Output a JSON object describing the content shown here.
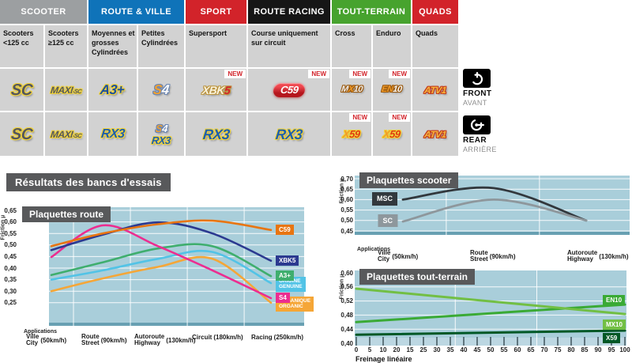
{
  "page": {
    "background": "#ffffff",
    "chart_background": "#a9ceda",
    "title_box_color": "#58595b"
  },
  "section_title": "Résultats des bancs d'essais",
  "side_legend": {
    "front": {
      "label": "FRONT",
      "sub": "AVANT",
      "icon": "front-brake-disc-icon"
    },
    "rear": {
      "label": "REAR",
      "sub": "ARRIÈRE",
      "icon": "rear-brake-disc-icon"
    }
  },
  "product_table": {
    "new_badge": "NEW",
    "headers": [
      {
        "label": "SCOOTER",
        "color": "#9c9fa1",
        "span": 2
      },
      {
        "label": "ROUTE & VILLE",
        "color": "#0f73b9",
        "span": 2
      },
      {
        "label": "SPORT",
        "color": "#d2232a",
        "span": 1
      },
      {
        "label": "ROUTE RACING",
        "color": "#161616",
        "span": 1
      },
      {
        "label": "TOUT-TERRAIN",
        "color": "#47a32e",
        "span": 2
      },
      {
        "label": "QUADS",
        "color": "#d2232a",
        "span": 1
      }
    ],
    "subheaders": [
      "Scooters <125 cc",
      "Scooters ≥125 cc",
      "Moyennes et grosses Cylindrées",
      "Petites Cylindrées",
      "Supersport",
      "Course uniquement sur circuit",
      "Cross",
      "Enduro",
      "Quads"
    ],
    "rows": {
      "front": [
        {
          "name": "SC",
          "new": false,
          "logos": [
            {
              "size": 20,
              "outline": "#f0d23c",
              "parts": [
                {
                  "t": "SC",
                  "c": "#54575d"
                }
              ]
            }
          ]
        },
        {
          "name": "MAXI-SC",
          "new": false,
          "logos": [
            {
              "size": 12,
              "outline": "#f0d23c",
              "parts": [
                {
                  "t": "MAXI",
                  "c": "#54575d"
                },
                {
                  "t": "-SC",
                  "c": "#54575d",
                  "small": true
                }
              ]
            }
          ]
        },
        {
          "name": "A3+",
          "new": false,
          "logos": [
            {
              "size": 17,
              "outline": "#f0d23c",
              "parts": [
                {
                  "t": "A3+",
                  "c": "#1b4f9e"
                }
              ]
            }
          ]
        },
        {
          "name": "S4",
          "new": false,
          "logos": [
            {
              "size": 17,
              "outline": "#6b87b4",
              "parts": [
                {
                  "t": "S",
                  "c": "#f0a030"
                },
                {
                  "t": "4",
                  "c": "#fbfbfb"
                }
              ]
            }
          ]
        },
        {
          "name": "XBK5",
          "new": true,
          "logos": [
            {
              "size": 14,
              "outline": "#bb9440",
              "parts": [
                {
                  "t": "XBK",
                  "c": "#faf3dc"
                },
                {
                  "t": "5",
                  "c": "#d2232a"
                }
              ]
            }
          ]
        },
        {
          "name": "C59",
          "new": true,
          "logos": [
            {
              "size": 13,
              "pill": true,
              "parts": [
                {
                  "t": "C59",
                  "c": "#ffffff"
                }
              ]
            }
          ]
        },
        {
          "name": "MX10",
          "new": true,
          "logos": [
            {
              "size": 11,
              "outline": "#9a5a10",
              "parts": [
                {
                  "t": "M",
                  "c": "#ececec"
                },
                {
                  "t": "X",
                  "c": "#f09a28"
                },
                {
                  "t": "10",
                  "c": "#ececec"
                }
              ]
            }
          ]
        },
        {
          "name": "EN10",
          "new": true,
          "logos": [
            {
              "size": 11,
              "outline": "#9a5a10",
              "parts": [
                {
                  "t": "EN",
                  "c": "#f09a28"
                },
                {
                  "t": "10",
                  "c": "#f7f7f7"
                }
              ]
            }
          ]
        },
        {
          "name": "ATV1",
          "new": false,
          "logos": [
            {
              "size": 12,
              "outline": "#c23b1e",
              "parts": [
                {
                  "t": "ATV1",
                  "c": "#f5b53d"
                }
              ]
            }
          ]
        }
      ],
      "rear": [
        {
          "name": "SC",
          "new": false,
          "logos": [
            {
              "size": 20,
              "outline": "#f0d23c",
              "parts": [
                {
                  "t": "SC",
                  "c": "#54575d"
                }
              ]
            }
          ]
        },
        {
          "name": "MAXI-SC",
          "new": false,
          "logos": [
            {
              "size": 12,
              "outline": "#f0d23c",
              "parts": [
                {
                  "t": "MAXI",
                  "c": "#54575d"
                },
                {
                  "t": "-SC",
                  "c": "#54575d",
                  "small": true
                }
              ]
            }
          ]
        },
        {
          "name": "RX3",
          "new": false,
          "logos": [
            {
              "size": 16,
              "outline": "#f0d23c",
              "parts": [
                {
                  "t": "RX3",
                  "c": "#1d5fad"
                }
              ]
            }
          ]
        },
        {
          "name": "S4 / RX3",
          "new": false,
          "logos": [
            {
              "size": 13,
              "outline": "#6b87b4",
              "parts": [
                {
                  "t": "S",
                  "c": "#f0a030"
                },
                {
                  "t": "4",
                  "c": "#fbfbfb"
                }
              ]
            },
            {
              "size": 13,
              "outline": "#f0d23c",
              "parts": [
                {
                  "t": "RX3",
                  "c": "#1d5fad"
                }
              ]
            }
          ]
        },
        {
          "name": "RX3",
          "new": false,
          "logos": [
            {
              "size": 18,
              "outline": "#f0d23c",
              "parts": [
                {
                  "t": "RX3",
                  "c": "#1d5fad"
                }
              ]
            }
          ]
        },
        {
          "name": "RX3",
          "new": false,
          "logos": [
            {
              "size": 18,
              "outline": "#f0d23c",
              "parts": [
                {
                  "t": "RX3",
                  "c": "#1d5fad"
                }
              ]
            }
          ]
        },
        {
          "name": "X59",
          "new": true,
          "logos": [
            {
              "size": 13,
              "outline": "#f0d23c",
              "parts": [
                {
                  "t": "X",
                  "c": "#f09a28"
                },
                {
                  "t": "59",
                  "c": "#e03c10"
                }
              ]
            }
          ]
        },
        {
          "name": "X59",
          "new": true,
          "logos": [
            {
              "size": 13,
              "outline": "#f0d23c",
              "parts": [
                {
                  "t": "X",
                  "c": "#f09a28"
                },
                {
                  "t": "59",
                  "c": "#e03c10"
                }
              ]
            }
          ]
        },
        {
          "name": "ATV1",
          "new": false,
          "logos": [
            {
              "size": 12,
              "outline": "#c23b1e",
              "parts": [
                {
                  "t": "ATV1",
                  "c": "#f5b53d"
                }
              ]
            }
          ]
        }
      ]
    }
  },
  "chart_data": [
    {
      "type": "line",
      "title": "Plaquettes route",
      "ylabel": "Friction μ",
      "xlabel": "Applications",
      "ylim": [
        0.25,
        0.65
      ],
      "yticks": [
        0.65,
        0.6,
        0.55,
        0.5,
        0.45,
        0.4,
        0.35,
        0.3,
        0.25
      ],
      "ytick_labels": [
        "0,65",
        "0,60",
        "0,55",
        "0,50",
        "0,45",
        "0,40",
        "0,35",
        "0,30",
        "0,25"
      ],
      "grid": true,
      "legend_position": "right-of-line-end",
      "categories": [
        {
          "fr": "Ville",
          "en": "City",
          "speed": "(50km/h)"
        },
        {
          "fr": "Route",
          "en": "Street",
          "speed": "(90km/h)"
        },
        {
          "fr": "Autoroute",
          "en": "Highway",
          "speed": "(130km/h)"
        },
        {
          "fr": "Circuit",
          "speed": "(180km/h)"
        },
        {
          "fr": "Racing",
          "speed": "(250km/h)"
        }
      ],
      "series": [
        {
          "name": "ORGANIQUE / ORGANIC",
          "label_lines": [
            "ORGANIQUE",
            "ORGANIC"
          ],
          "color": "#f5a637",
          "values": [
            0.3,
            0.355,
            0.405,
            0.44,
            0.25
          ]
        },
        {
          "name": "ORIGINE / GENUINE",
          "label_lines": [
            "ORIGINE",
            "GENUINE"
          ],
          "color": "#52c3e6",
          "values": [
            0.35,
            0.39,
            0.44,
            0.47,
            0.335
          ]
        },
        {
          "name": "A3+",
          "color": "#3fae6e",
          "values": [
            0.37,
            0.425,
            0.485,
            0.495,
            0.365
          ]
        },
        {
          "name": "S4",
          "color": "#ec2d90",
          "values": [
            0.448,
            0.585,
            0.495,
            0.39,
            0.27
          ]
        },
        {
          "name": "XBK5",
          "color": "#2b3990",
          "values": [
            0.478,
            0.545,
            0.598,
            0.55,
            0.432
          ]
        },
        {
          "name": "C59",
          "color": "#e87511",
          "values": [
            0.495,
            0.55,
            0.59,
            0.605,
            0.565
          ]
        }
      ]
    },
    {
      "type": "line",
      "title": "Plaquettes scooter",
      "ylabel": "Friction μ",
      "xlabel": "Applications",
      "ylim": [
        0.45,
        0.7
      ],
      "yticks": [
        0.7,
        0.65,
        0.6,
        0.55,
        0.5,
        0.45
      ],
      "ytick_labels": [
        "0,70",
        "0,65",
        "0,60",
        "0,55",
        "0,50",
        "0,45"
      ],
      "grid": true,
      "legend_position": "left-of-line-start",
      "categories": [
        {
          "fr": "Ville",
          "en": "City",
          "speed": "(50km/h)"
        },
        {
          "fr": "Route",
          "en": "Street",
          "speed": "(90km/h)"
        },
        {
          "fr": "Autoroute",
          "en": "Highway",
          "speed": "(130km/h)"
        }
      ],
      "series": [
        {
          "name": "MSC",
          "color": "#32383d",
          "values": [
            0.6,
            0.655,
            0.5
          ]
        },
        {
          "name": "SC",
          "color": "#8e979c",
          "values": [
            0.495,
            0.6,
            0.5
          ]
        }
      ]
    },
    {
      "type": "line",
      "title": "Plaquettes tout-terrain",
      "ylabel": "Friction μ",
      "xlabel": "Freinage linéaire",
      "ylim": [
        0.4,
        0.6
      ],
      "yticks": [
        0.6,
        0.56,
        0.52,
        0.48,
        0.44,
        0.4
      ],
      "ytick_labels": [
        "0,60",
        "0,56",
        "0,52",
        "0,48",
        "0,44",
        "0,40"
      ],
      "xtick_labels": [
        "0",
        "5",
        "10",
        "20",
        "15",
        "25",
        "30",
        "35",
        "40",
        "45",
        "50",
        "55",
        "60",
        "65",
        "70",
        "75",
        "80",
        "85",
        "90",
        "95",
        "100"
      ],
      "xrange": [
        0,
        100
      ],
      "grid": true,
      "legend_position": "right-inside",
      "series": [
        {
          "name": "EN10",
          "color": "#3aaa35",
          "x": [
            0,
            100
          ],
          "values": [
            0.46,
            0.51
          ]
        },
        {
          "name": "MX10",
          "color": "#72bf44",
          "x": [
            0,
            100
          ],
          "values": [
            0.555,
            0.483
          ]
        },
        {
          "name": "X59",
          "color": "#005826",
          "x": [
            0,
            100
          ],
          "values": [
            0.424,
            0.436
          ]
        }
      ]
    }
  ]
}
